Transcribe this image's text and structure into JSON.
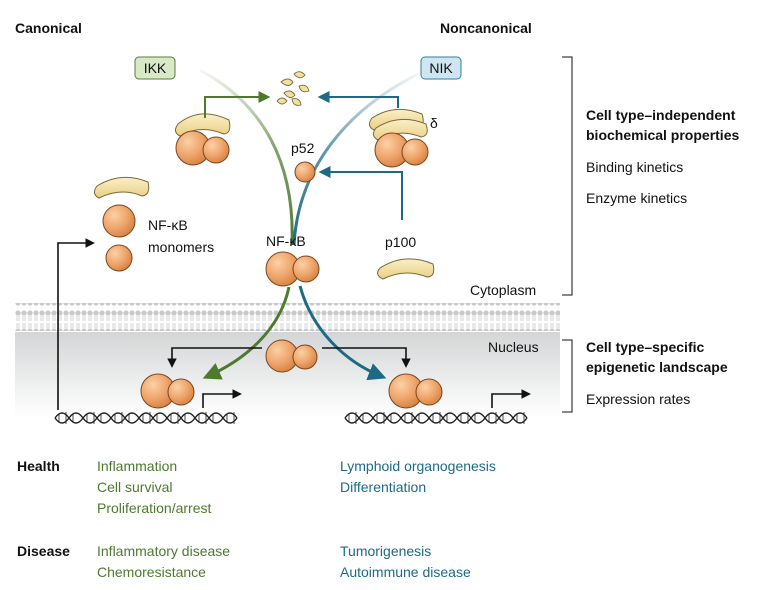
{
  "headers": {
    "canonical": "Canonical",
    "noncanonical": "Noncanonical"
  },
  "kinases": {
    "ikk": "IKK",
    "nik": "NIK"
  },
  "molecules": {
    "delta": "δ",
    "p52": "p52",
    "p100": "p100",
    "nfkb": "NF-κB",
    "monomers_line1": "NF-κB",
    "monomers_line2": "monomers"
  },
  "compartments": {
    "cytoplasm": "Cytoplasm",
    "nucleus": "Nucleus"
  },
  "properties": {
    "independent_line1": "Cell type–independent",
    "independent_line2": "biochemical properties",
    "binding": "Binding kinetics",
    "enzyme": "Enzyme kinetics",
    "specific_line1": "Cell type–specific",
    "specific_line2": "epigenetic landscape",
    "expression": "Expression rates"
  },
  "outcomes": {
    "health_label": "Health",
    "disease_label": "Disease",
    "health_canonical": [
      "Inflammation",
      "Cell survival",
      "Proliferation/arrest"
    ],
    "health_noncanonical": [
      "Lymphoid organogenesis",
      "Differentiation"
    ],
    "disease_canonical": [
      "Inflammatory disease",
      "Chemoresistance"
    ],
    "disease_noncanonical": [
      "Tumorigenesis",
      "Autoimmune disease"
    ]
  },
  "colors": {
    "canonical": "#4d7a2f",
    "noncanonical": "#1d6a84",
    "ikk_fill": "#d9e8c7",
    "nik_fill": "#cfe6f2",
    "protein": "#eea56b",
    "inhibitor": "#f3dfa0"
  }
}
